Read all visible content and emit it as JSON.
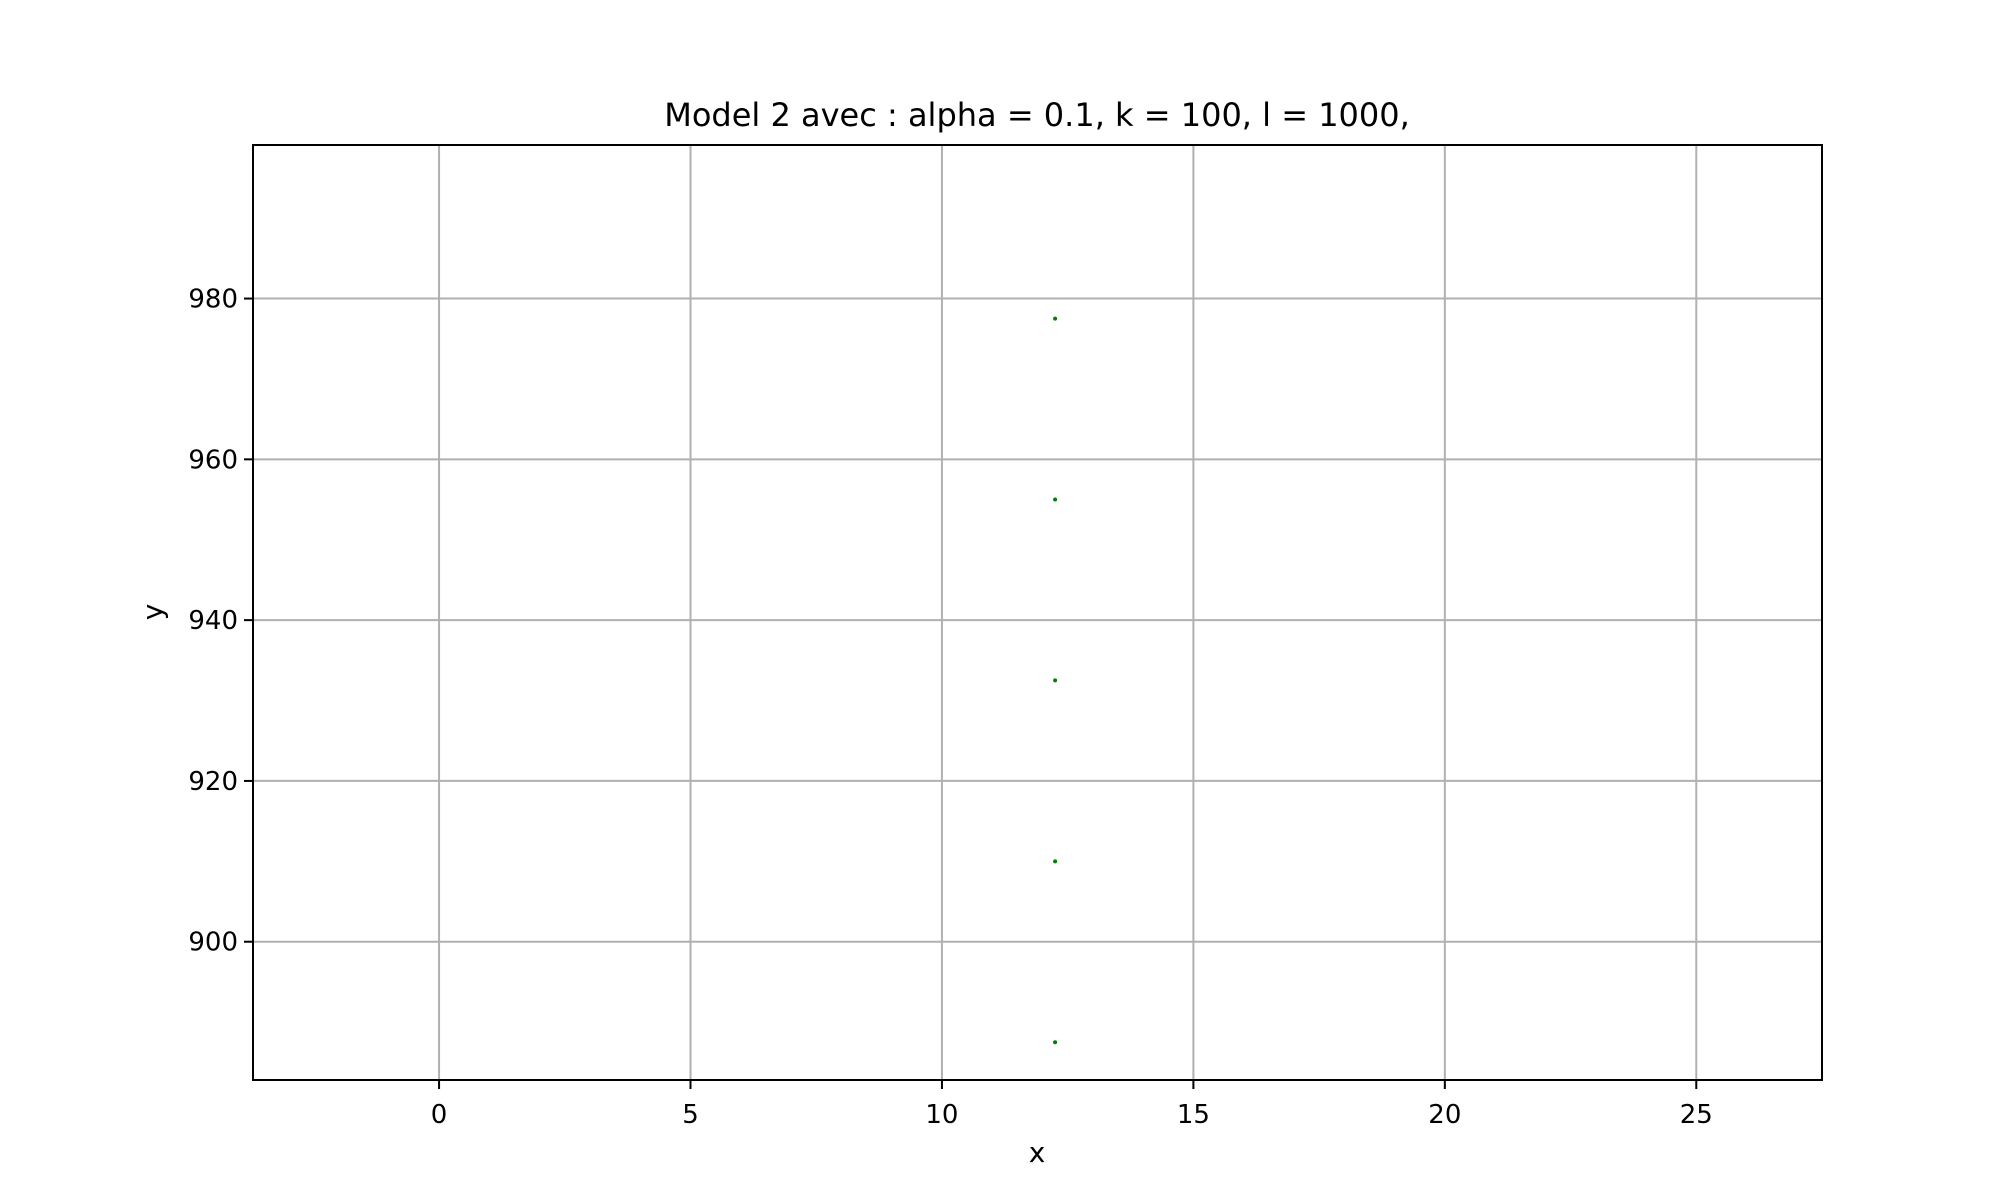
{
  "chart_data": {
    "type": "scatter",
    "title": "Model 2 avec : alpha = 0.1, k = 100, l = 1000,",
    "xlabel": "x",
    "ylabel": "y",
    "xlim": [
      -3.7,
      27.5
    ],
    "ylim": [
      882.8,
      999.1
    ],
    "xticks": [
      0,
      5,
      10,
      15,
      20,
      25
    ],
    "xtick_labels": [
      "0",
      "5",
      "10",
      "15",
      "20",
      "25"
    ],
    "yticks": [
      900,
      920,
      940,
      960,
      980
    ],
    "ytick_labels": [
      "900",
      "920",
      "940",
      "960",
      "980"
    ],
    "grid": true,
    "marker_color": "#008000",
    "series": [
      {
        "x": [
          12.25,
          12.25,
          12.25,
          12.25,
          12.25
        ],
        "y": [
          887.5,
          910.0,
          932.5,
          955.0,
          977.5
        ]
      }
    ]
  }
}
